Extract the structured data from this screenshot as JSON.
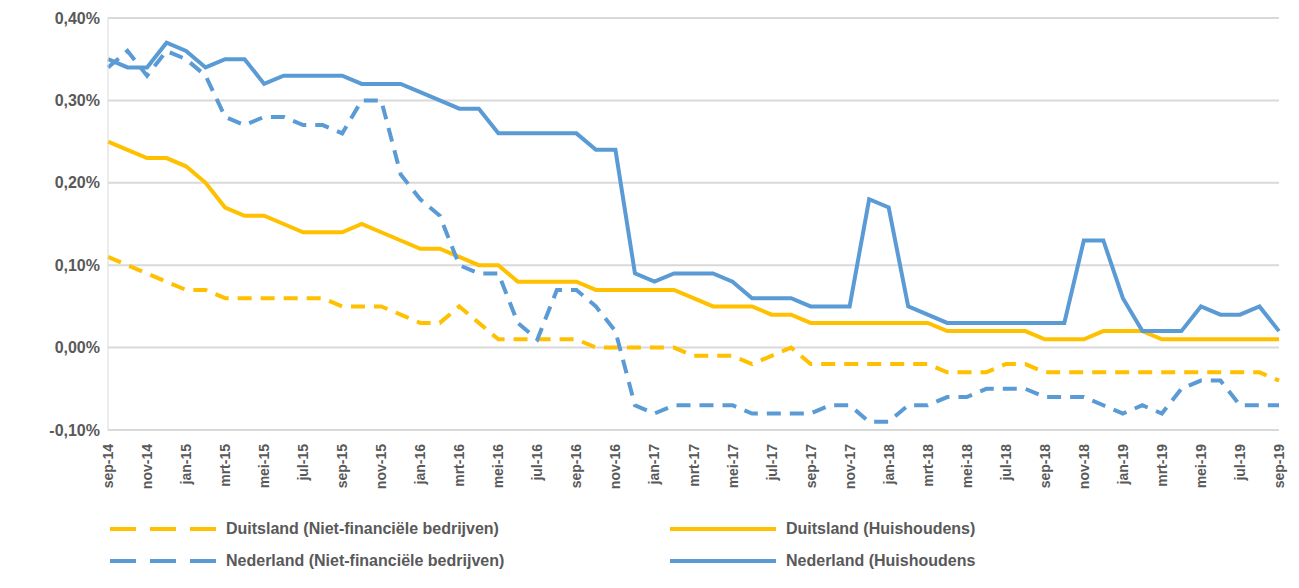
{
  "chart_data": {
    "type": "line",
    "categories": [
      "sep-14",
      null,
      "nov-14",
      null,
      "jan-15",
      null,
      "mrt-15",
      null,
      "mei-15",
      null,
      "jul-15",
      null,
      "sep-15",
      null,
      "nov-15",
      null,
      "jan-16",
      null,
      "mrt-16",
      null,
      "mei-16",
      null,
      "jul-16",
      null,
      "sep-16",
      null,
      "nov-16",
      null,
      "jan-17",
      null,
      "mrt-17",
      null,
      "mei-17",
      null,
      "jul-17",
      null,
      "sep-17",
      null,
      "nov-17",
      null,
      "jan-18",
      null,
      "mrt-18",
      null,
      "mei-18",
      null,
      "jul-18",
      null,
      "sep-18",
      null,
      "nov-18",
      null,
      "jan-19",
      null,
      "mrt-19",
      null,
      "mei-19",
      null,
      "jul-19",
      null,
      "sep-19"
    ],
    "series": [
      {
        "name": "Duitsland (Niet-financiële bedrijven)",
        "color": "#FFC000",
        "line_style": "dashed",
        "values": [
          0.11,
          0.1,
          0.09,
          0.08,
          0.07,
          0.07,
          0.06,
          0.06,
          0.06,
          0.06,
          0.06,
          0.06,
          0.05,
          0.05,
          0.05,
          0.04,
          0.03,
          0.03,
          0.05,
          0.03,
          0.01,
          0.01,
          0.01,
          0.01,
          0.01,
          0.0,
          0.0,
          0.0,
          0.0,
          0.0,
          -0.01,
          -0.01,
          -0.01,
          -0.02,
          -0.01,
          0.0,
          -0.02,
          -0.02,
          -0.02,
          -0.02,
          -0.02,
          -0.02,
          -0.02,
          -0.03,
          -0.03,
          -0.03,
          -0.02,
          -0.02,
          -0.03,
          -0.03,
          -0.03,
          -0.03,
          -0.03,
          -0.03,
          -0.03,
          -0.03,
          -0.03,
          -0.03,
          -0.03,
          -0.03,
          -0.04
        ]
      },
      {
        "name": "Duitsland (Huishoudens)",
        "color": "#FFC000",
        "line_style": "solid",
        "values": [
          0.25,
          0.24,
          0.23,
          0.23,
          0.22,
          0.2,
          0.17,
          0.16,
          0.16,
          0.15,
          0.14,
          0.14,
          0.14,
          0.15,
          0.14,
          0.13,
          0.12,
          0.12,
          0.11,
          0.1,
          0.1,
          0.08,
          0.08,
          0.08,
          0.08,
          0.07,
          0.07,
          0.07,
          0.07,
          0.07,
          0.06,
          0.05,
          0.05,
          0.05,
          0.04,
          0.04,
          0.03,
          0.03,
          0.03,
          0.03,
          0.03,
          0.03,
          0.03,
          0.02,
          0.02,
          0.02,
          0.02,
          0.02,
          0.01,
          0.01,
          0.01,
          0.02,
          0.02,
          0.02,
          0.01,
          0.01,
          0.01,
          0.01,
          0.01,
          0.01,
          0.01
        ]
      },
      {
        "name": "Nederland (Niet-financiële bedrijven)",
        "color": "#5B9BD5",
        "line_style": "dashed",
        "values": [
          0.34,
          0.36,
          0.33,
          0.36,
          0.35,
          0.33,
          0.28,
          0.27,
          0.28,
          0.28,
          0.27,
          0.27,
          0.26,
          0.3,
          0.3,
          0.21,
          0.18,
          0.16,
          0.1,
          0.09,
          0.09,
          0.03,
          0.01,
          0.07,
          0.07,
          0.05,
          0.02,
          -0.07,
          -0.08,
          -0.07,
          -0.07,
          -0.07,
          -0.07,
          -0.08,
          -0.08,
          -0.08,
          -0.08,
          -0.07,
          -0.07,
          -0.09,
          -0.09,
          -0.07,
          -0.07,
          -0.06,
          -0.06,
          -0.05,
          -0.05,
          -0.05,
          -0.06,
          -0.06,
          -0.06,
          -0.07,
          -0.08,
          -0.07,
          -0.08,
          -0.05,
          -0.04,
          -0.04,
          -0.07,
          -0.07,
          -0.07
        ]
      },
      {
        "name": "Nederland (Huishoudens",
        "color": "#5B9BD5",
        "line_style": "solid",
        "values": [
          0.35,
          0.34,
          0.34,
          0.37,
          0.36,
          0.34,
          0.35,
          0.35,
          0.32,
          0.33,
          0.33,
          0.33,
          0.33,
          0.32,
          0.32,
          0.32,
          0.31,
          0.3,
          0.29,
          0.29,
          0.26,
          0.26,
          0.26,
          0.26,
          0.26,
          0.24,
          0.24,
          0.09,
          0.08,
          0.09,
          0.09,
          0.09,
          0.08,
          0.06,
          0.06,
          0.06,
          0.05,
          0.05,
          0.05,
          0.18,
          0.17,
          0.05,
          0.04,
          0.03,
          0.03,
          0.03,
          0.03,
          0.03,
          0.03,
          0.03,
          0.13,
          0.13,
          0.06,
          0.02,
          0.02,
          0.02,
          0.05,
          0.04,
          0.04,
          0.05,
          0.02
        ]
      }
    ],
    "ylim": [
      -0.1,
      0.4
    ],
    "yticks": [
      {
        "value": -0.1,
        "label": "-0,10%"
      },
      {
        "value": 0,
        "label": "0,00%"
      },
      {
        "value": 0.1,
        "label": "0,10%"
      },
      {
        "value": 0.2,
        "label": "0,20%"
      },
      {
        "value": 0.3,
        "label": "0,30%"
      },
      {
        "value": 0.4,
        "label": "0,40%"
      }
    ],
    "grid": true,
    "legend": "bottom"
  }
}
